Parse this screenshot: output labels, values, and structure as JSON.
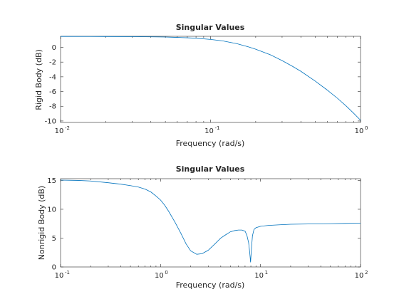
{
  "chart_data": [
    {
      "type": "line",
      "title": "Singular Values",
      "xlabel": "Frequency (rad/s)",
      "ylabel": "Rigid Body (dB)",
      "xscale": "log",
      "xlim": [
        0.01,
        1
      ],
      "ylim": [
        -10.2,
        1.5
      ],
      "grid": false,
      "x_ticks": [
        {
          "base": "10",
          "exp": "-2",
          "value": 0.01
        },
        {
          "base": "10",
          "exp": "-1",
          "value": 0.1
        },
        {
          "base": "10",
          "exp": "0",
          "value": 1
        }
      ],
      "y_ticks": [
        {
          "label": "0",
          "value": 0
        },
        {
          "label": "-2",
          "value": -2
        },
        {
          "label": "-4",
          "value": -4
        },
        {
          "label": "-6",
          "value": -6
        },
        {
          "label": "-8",
          "value": -8
        },
        {
          "label": "-10",
          "value": -10
        }
      ],
      "series": [
        {
          "color": "#0072bd",
          "x": [
            0.01,
            0.02,
            0.03,
            0.04,
            0.05,
            0.06,
            0.07,
            0.08,
            0.1,
            0.12,
            0.15,
            0.18,
            0.2,
            0.25,
            0.3,
            0.35,
            0.4,
            0.5,
            0.6,
            0.7,
            0.8,
            0.9,
            1.0
          ],
          "y": [
            1.48,
            1.47,
            1.45,
            1.43,
            1.4,
            1.35,
            1.3,
            1.24,
            1.08,
            0.88,
            0.5,
            0.05,
            -0.25,
            -1.0,
            -1.8,
            -2.55,
            -3.25,
            -4.6,
            -5.8,
            -6.9,
            -7.95,
            -8.95,
            -9.9
          ]
        }
      ]
    },
    {
      "type": "line",
      "title": "Singular Values",
      "xlabel": "Frequency (rad/s)",
      "ylabel": "Nonrigid Body (dB)",
      "xscale": "log",
      "xlim": [
        0.1,
        100
      ],
      "ylim": [
        0,
        15.3
      ],
      "grid": false,
      "x_ticks": [
        {
          "base": "10",
          "exp": "-1",
          "value": 0.1
        },
        {
          "base": "10",
          "exp": "0",
          "value": 1
        },
        {
          "base": "10",
          "exp": "1",
          "value": 10
        },
        {
          "base": "10",
          "exp": "2",
          "value": 100
        }
      ],
      "y_ticks": [
        {
          "label": "0",
          "value": 0
        },
        {
          "label": "5",
          "value": 5
        },
        {
          "label": "10",
          "value": 10
        },
        {
          "label": "15",
          "value": 15
        }
      ],
      "series": [
        {
          "color": "#0072bd",
          "x": [
            0.1,
            0.15,
            0.2,
            0.3,
            0.4,
            0.5,
            0.6,
            0.7,
            0.8,
            0.9,
            1.0,
            1.1,
            1.2,
            1.4,
            1.6,
            1.8,
            2.0,
            2.3,
            2.6,
            3.0,
            3.5,
            4.0,
            4.5,
            5.0,
            5.5,
            6.0,
            6.5,
            7.0,
            7.3,
            7.6,
            7.8,
            7.95,
            8.1,
            8.3,
            8.6,
            9.0,
            10,
            12,
            15,
            20,
            30,
            50,
            70,
            100
          ],
          "y": [
            15.05,
            15.0,
            14.9,
            14.6,
            14.35,
            14.1,
            13.85,
            13.5,
            13.0,
            12.3,
            11.6,
            10.7,
            9.7,
            7.7,
            5.8,
            4.0,
            2.8,
            2.2,
            2.3,
            2.9,
            4.0,
            5.0,
            5.6,
            6.1,
            6.3,
            6.4,
            6.4,
            6.2,
            5.5,
            4.2,
            2.5,
            0.8,
            3.0,
            5.4,
            6.5,
            6.8,
            7.05,
            7.2,
            7.3,
            7.4,
            7.45,
            7.5,
            7.55,
            7.6
          ]
        }
      ]
    }
  ]
}
